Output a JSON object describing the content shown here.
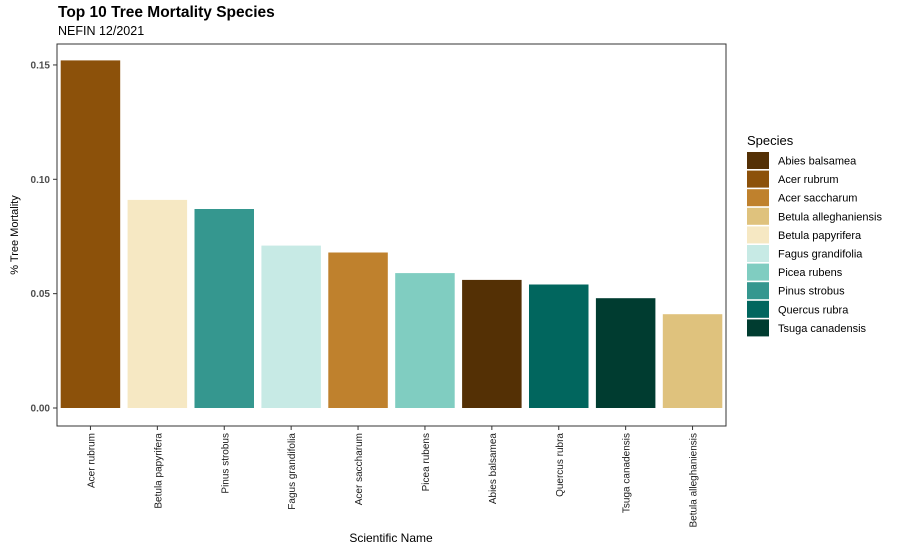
{
  "chart_data": {
    "type": "bar",
    "title": "Top 10 Tree Mortality Species",
    "subtitle": "NEFIN 12/2021",
    "xlabel": "Scientific Name",
    "ylabel": "% Tree Mortality",
    "ylim": [
      0,
      0.158
    ],
    "yticks": [
      "0.00",
      "0.05",
      "0.10",
      "0.15"
    ],
    "ytick_values": [
      0,
      0.05,
      0.1,
      0.15
    ],
    "grid": false,
    "legend_position": "right",
    "legend_title": "Species",
    "categories": [
      "Acer rubrum",
      "Betula papyrifera",
      "Pinus strobus",
      "Fagus grandifolia",
      "Acer saccharum",
      "Picea rubens",
      "Abies balsamea",
      "Quercus rubra",
      "Tsuga canadensis",
      "Betula alleghaniensis"
    ],
    "values": [
      0.152,
      0.091,
      0.087,
      0.071,
      0.068,
      0.059,
      0.056,
      0.054,
      0.048,
      0.041
    ],
    "species_colors": {
      "Abies balsamea": "#543005",
      "Acer rubrum": "#8C510A",
      "Acer saccharum": "#BF812D",
      "Betula alleghaniensis": "#DFC27D",
      "Betula papyrifera": "#F6E8C3",
      "Fagus grandifolia": "#C7EAE5",
      "Picea rubens": "#80CDC1",
      "Pinus strobus": "#35978F",
      "Quercus rubra": "#01665E",
      "Tsuga canadensis": "#003C30"
    },
    "legend_entries": [
      "Abies balsamea",
      "Acer rubrum",
      "Acer saccharum",
      "Betula alleghaniensis",
      "Betula papyrifera",
      "Fagus grandifolia",
      "Picea rubens",
      "Pinus strobus",
      "Quercus rubra",
      "Tsuga canadensis"
    ]
  }
}
